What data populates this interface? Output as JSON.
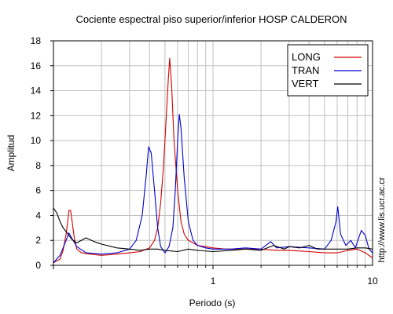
{
  "chart_data": {
    "type": "line",
    "title": "Cociente espectral piso superior/inferior  HOSP CALDERON",
    "xlabel": "Periodo (s)",
    "ylabel": "Amplitud",
    "x_scale": "log",
    "xlim": [
      0.1,
      10
    ],
    "ylim": [
      0,
      18
    ],
    "y_ticks": [
      "0",
      "2",
      "4",
      "6",
      "8",
      "10",
      "12",
      "14",
      "16",
      "18"
    ],
    "x_tick_labels": [
      {
        "value": 1,
        "label": "1"
      },
      {
        "value": 10,
        "label": "10"
      }
    ],
    "grid": true,
    "legend_position": "top-right",
    "url_text": "http://www.lis.ucr.ac.cr",
    "series": [
      {
        "name": "LONG",
        "color": "#d40000",
        "points": [
          [
            0.1,
            0.2
          ],
          [
            0.11,
            0.5
          ],
          [
            0.115,
            1.2
          ],
          [
            0.12,
            2.5
          ],
          [
            0.123,
            3.6
          ],
          [
            0.125,
            4.4
          ],
          [
            0.128,
            4.4
          ],
          [
            0.131,
            3.5
          ],
          [
            0.135,
            2.2
          ],
          [
            0.14,
            1.3
          ],
          [
            0.15,
            1.0
          ],
          [
            0.17,
            0.9
          ],
          [
            0.2,
            0.8
          ],
          [
            0.25,
            0.9
          ],
          [
            0.3,
            1.0
          ],
          [
            0.35,
            1.1
          ],
          [
            0.4,
            1.4
          ],
          [
            0.43,
            2.0
          ],
          [
            0.45,
            3.0
          ],
          [
            0.47,
            5.0
          ],
          [
            0.49,
            8.0
          ],
          [
            0.51,
            12.0
          ],
          [
            0.525,
            15.0
          ],
          [
            0.535,
            16.6
          ],
          [
            0.55,
            14.5
          ],
          [
            0.57,
            10.0
          ],
          [
            0.6,
            6.0
          ],
          [
            0.63,
            3.5
          ],
          [
            0.66,
            2.5
          ],
          [
            0.7,
            2.0
          ],
          [
            0.8,
            1.6
          ],
          [
            0.9,
            1.5
          ],
          [
            1.0,
            1.4
          ],
          [
            1.2,
            1.3
          ],
          [
            1.5,
            1.3
          ],
          [
            2.0,
            1.3
          ],
          [
            2.5,
            1.2
          ],
          [
            3.0,
            1.2
          ],
          [
            4.0,
            1.1
          ],
          [
            5.0,
            1.0
          ],
          [
            6.0,
            1.0
          ],
          [
            7.0,
            1.2
          ],
          [
            8.0,
            1.3
          ],
          [
            9.0,
            1.0
          ],
          [
            10.0,
            0.6
          ]
        ]
      },
      {
        "name": "TRAN",
        "color": "#0000cc",
        "points": [
          [
            0.1,
            0.2
          ],
          [
            0.11,
            0.8
          ],
          [
            0.12,
            2.0
          ],
          [
            0.125,
            2.6
          ],
          [
            0.13,
            2.2
          ],
          [
            0.14,
            1.5
          ],
          [
            0.16,
            1.0
          ],
          [
            0.2,
            0.9
          ],
          [
            0.25,
            1.0
          ],
          [
            0.3,
            1.3
          ],
          [
            0.33,
            2.0
          ],
          [
            0.36,
            4.0
          ],
          [
            0.38,
            7.0
          ],
          [
            0.395,
            9.5
          ],
          [
            0.41,
            9.0
          ],
          [
            0.43,
            6.0
          ],
          [
            0.45,
            3.0
          ],
          [
            0.47,
            1.5
          ],
          [
            0.5,
            1.0
          ],
          [
            0.53,
            1.5
          ],
          [
            0.56,
            3.0
          ],
          [
            0.58,
            6.0
          ],
          [
            0.6,
            10.0
          ],
          [
            0.615,
            12.1
          ],
          [
            0.63,
            11.0
          ],
          [
            0.66,
            7.0
          ],
          [
            0.7,
            3.5
          ],
          [
            0.75,
            2.0
          ],
          [
            0.8,
            1.6
          ],
          [
            0.9,
            1.4
          ],
          [
            1.0,
            1.3
          ],
          [
            1.3,
            1.3
          ],
          [
            1.6,
            1.4
          ],
          [
            2.0,
            1.3
          ],
          [
            2.3,
            1.9
          ],
          [
            2.5,
            1.4
          ],
          [
            3.0,
            1.5
          ],
          [
            4.0,
            1.4
          ],
          [
            5.0,
            1.3
          ],
          [
            5.5,
            2.0
          ],
          [
            5.9,
            3.5
          ],
          [
            6.05,
            4.7
          ],
          [
            6.3,
            2.5
          ],
          [
            6.8,
            1.6
          ],
          [
            7.3,
            2.0
          ],
          [
            7.8,
            1.4
          ],
          [
            8.5,
            2.8
          ],
          [
            9.0,
            2.4
          ],
          [
            9.5,
            1.3
          ],
          [
            10.0,
            1.0
          ]
        ]
      },
      {
        "name": "VERT",
        "color": "#000000",
        "points": [
          [
            0.1,
            4.6
          ],
          [
            0.105,
            4.2
          ],
          [
            0.11,
            3.5
          ],
          [
            0.115,
            3.0
          ],
          [
            0.12,
            2.7
          ],
          [
            0.13,
            2.1
          ],
          [
            0.14,
            1.8
          ],
          [
            0.16,
            2.2
          ],
          [
            0.18,
            1.9
          ],
          [
            0.2,
            1.7
          ],
          [
            0.25,
            1.4
          ],
          [
            0.3,
            1.3
          ],
          [
            0.35,
            1.2
          ],
          [
            0.4,
            1.3
          ],
          [
            0.45,
            1.3
          ],
          [
            0.5,
            1.2
          ],
          [
            0.6,
            1.1
          ],
          [
            0.7,
            1.3
          ],
          [
            0.8,
            1.2
          ],
          [
            1.0,
            1.1
          ],
          [
            1.3,
            1.2
          ],
          [
            1.6,
            1.3
          ],
          [
            2.0,
            1.2
          ],
          [
            2.4,
            1.6
          ],
          [
            2.8,
            1.3
          ],
          [
            3.0,
            1.5
          ],
          [
            3.5,
            1.4
          ],
          [
            4.0,
            1.6
          ],
          [
            4.5,
            1.3
          ],
          [
            5.0,
            1.3
          ],
          [
            6.0,
            1.3
          ],
          [
            7.0,
            1.3
          ],
          [
            8.0,
            1.4
          ],
          [
            9.0,
            1.4
          ],
          [
            10.0,
            1.3
          ]
        ]
      }
    ]
  }
}
